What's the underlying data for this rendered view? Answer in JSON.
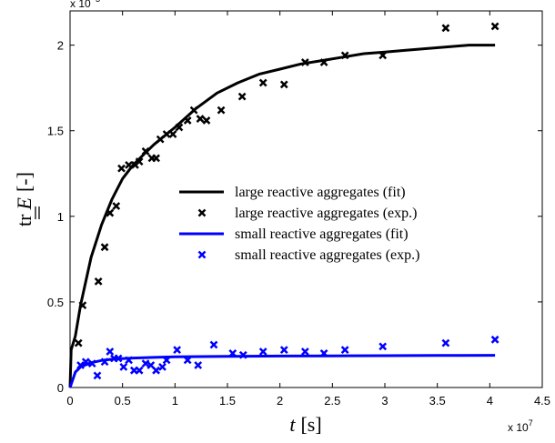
{
  "chart_data": {
    "type": "line",
    "x_multiplier_label": "x 10",
    "x_multiplier_exp": "7",
    "y_multiplier_label": "x 10",
    "y_multiplier_exp": "−3",
    "xlabel_var": "t",
    "xlabel_unit": "[s]",
    "ylabel_prefix": "tr",
    "ylabel_var": "E",
    "ylabel_unit": "[-]",
    "xlim": [
      0,
      4.5
    ],
    "ylim": [
      0,
      2.2
    ],
    "xticks": [
      0,
      0.5,
      1,
      1.5,
      2,
      2.5,
      3,
      3.5,
      4,
      4.5
    ],
    "xtick_labels": [
      "0",
      "0.5",
      "1",
      "1.5",
      "2",
      "2.5",
      "3",
      "3.5",
      "4",
      "4.5"
    ],
    "yticks": [
      0,
      0.5,
      1,
      1.5,
      2
    ],
    "ytick_labels": [
      "0",
      "0.5",
      "1",
      "1.5",
      "2"
    ],
    "grid": false,
    "legend_position": "center-right",
    "series": [
      {
        "name": "large reactive aggregates (fit)",
        "kind": "line",
        "color": "#000000",
        "x": [
          0,
          0.01,
          0.05,
          0.1,
          0.2,
          0.3,
          0.4,
          0.5,
          0.6,
          0.7,
          0.8,
          0.9,
          1.0,
          1.2,
          1.4,
          1.6,
          1.8,
          2.0,
          2.2,
          2.4,
          2.6,
          2.8,
          3.0,
          3.2,
          3.4,
          3.6,
          3.8,
          4.05
        ],
        "y": [
          0,
          0.22,
          0.3,
          0.48,
          0.76,
          0.95,
          1.1,
          1.22,
          1.3,
          1.36,
          1.42,
          1.47,
          1.52,
          1.63,
          1.72,
          1.78,
          1.83,
          1.86,
          1.89,
          1.91,
          1.93,
          1.95,
          1.96,
          1.97,
          1.98,
          1.99,
          2.0,
          2.0
        ]
      },
      {
        "name": "large reactive aggregates (exp.)",
        "kind": "marker",
        "color": "#000000",
        "x": [
          0.08,
          0.12,
          0.27,
          0.33,
          0.38,
          0.44,
          0.49,
          0.56,
          0.62,
          0.66,
          0.72,
          0.78,
          0.82,
          0.86,
          0.92,
          0.98,
          1.04,
          1.12,
          1.18,
          1.24,
          1.3,
          1.44,
          1.64,
          1.84,
          2.04,
          2.24,
          2.42,
          2.62,
          2.98,
          3.58,
          4.05
        ],
        "y": [
          0.26,
          0.48,
          0.62,
          0.82,
          1.02,
          1.06,
          1.28,
          1.3,
          1.3,
          1.32,
          1.38,
          1.34,
          1.34,
          1.45,
          1.48,
          1.48,
          1.52,
          1.56,
          1.62,
          1.57,
          1.56,
          1.62,
          1.7,
          1.78,
          1.77,
          1.9,
          1.9,
          1.94,
          1.94,
          2.1,
          2.11
        ]
      },
      {
        "name": "small reactive aggregates (fit)",
        "kind": "line",
        "color": "#0000ff",
        "x": [
          0,
          0.05,
          0.1,
          0.2,
          0.3,
          0.4,
          0.6,
          0.8,
          1.0,
          1.5,
          2.0,
          2.5,
          3.0,
          3.5,
          4.05
        ],
        "y": [
          0,
          0.09,
          0.12,
          0.145,
          0.158,
          0.165,
          0.172,
          0.176,
          0.179,
          0.182,
          0.184,
          0.185,
          0.186,
          0.187,
          0.188
        ]
      },
      {
        "name": "small reactive aggregates (exp.)",
        "kind": "marker",
        "color": "#0000ff",
        "x": [
          0.1,
          0.15,
          0.21,
          0.26,
          0.33,
          0.38,
          0.42,
          0.46,
          0.51,
          0.56,
          0.61,
          0.66,
          0.72,
          0.77,
          0.82,
          0.88,
          0.92,
          1.02,
          1.12,
          1.22,
          1.37,
          1.55,
          1.65,
          1.84,
          2.04,
          2.24,
          2.42,
          2.62,
          2.98,
          3.58,
          4.05
        ],
        "y": [
          0.13,
          0.15,
          0.14,
          0.07,
          0.15,
          0.21,
          0.17,
          0.17,
          0.12,
          0.16,
          0.1,
          0.1,
          0.14,
          0.13,
          0.1,
          0.12,
          0.16,
          0.22,
          0.16,
          0.13,
          0.25,
          0.2,
          0.19,
          0.21,
          0.22,
          0.21,
          0.2,
          0.22,
          0.24,
          0.26,
          0.28
        ]
      }
    ]
  }
}
